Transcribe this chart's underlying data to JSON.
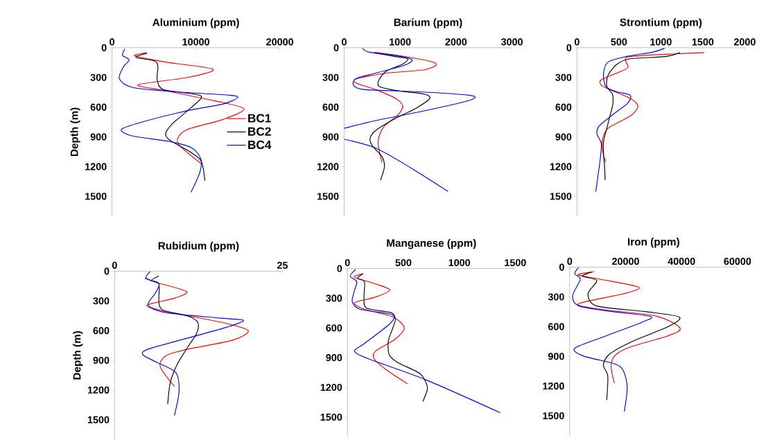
{
  "chart_data": [
    {
      "type": "line",
      "title": "Aluminium (ppm)",
      "ylabel": "Depth (m)",
      "xlim": [
        0,
        20000
      ],
      "xticks": [
        0,
        10000,
        20000
      ],
      "ylim": [
        1700,
        0
      ],
      "yticks": [
        0,
        300,
        600,
        900,
        1200,
        1500
      ],
      "legend": "right",
      "series": [
        {
          "name": "BC1",
          "color": "#ff0000",
          "x": [
            4155,
            2709,
            6390,
            12045,
            9020,
            3100,
            6390,
            12180,
            15730,
            13230,
            9020,
            7840,
            8100,
            10600
          ],
          "values": [
            51,
            82,
            145,
            218,
            300,
            374,
            434,
            535,
            617,
            724,
            824,
            913,
            991,
            1169
          ]
        },
        {
          "name": "BC2",
          "color": "#000000",
          "x": [
            4155,
            2840,
            5075,
            5470,
            5390,
            6130,
            9810,
            10650,
            9020,
            7190,
            6390,
            6920,
            9020,
            10470,
            10860,
            11070
          ],
          "values": [
            56,
            96,
            134,
            189,
            323,
            423,
            468,
            506,
            635,
            768,
            869,
            935,
            1036,
            1125,
            1214,
            1343
          ]
        },
        {
          "name": "BC4",
          "color": "#0000ff",
          "x": [
            1525,
            1260,
            2050,
            1390,
            870,
            2450,
            7710,
            14020,
            14940,
            13230,
            9020,
            3760,
            1130,
            2450,
            6920,
            9550,
            10600,
            10470,
            9420
          ],
          "values": [
            11,
            78,
            122,
            189,
            312,
            401,
            445,
            479,
            506,
            568,
            635,
            746,
            824,
            891,
            947,
            1013,
            1125,
            1258,
            1459
          ]
        }
      ]
    },
    {
      "type": "line",
      "title": "Barium (ppm)",
      "xlim": [
        0,
        3000
      ],
      "xticks": [
        0,
        1000,
        2000,
        3000
      ],
      "ylim": [
        1700,
        0
      ],
      "yticks": [
        0,
        300,
        600,
        900,
        1200,
        1500
      ],
      "series": [
        {
          "color": "#ff0000",
          "x": [
            545,
            960,
            1510,
            1650,
            1430,
            760,
            230,
            210,
            565,
            920,
            1045,
            960,
            720,
            620,
            610,
            675
          ],
          "values": [
            45,
            78,
            134,
            171,
            223,
            256,
            312,
            356,
            423,
            512,
            590,
            679,
            791,
            902,
            991,
            1158
          ]
        },
        {
          "color": "#000000",
          "x": [
            585,
            920,
            1140,
            1040,
            760,
            625,
            625,
            960,
            1430,
            1530,
            1280,
            920,
            565,
            465,
            505,
            680,
            720,
            650
          ],
          "values": [
            56,
            89,
            111,
            167,
            234,
            323,
            390,
            434,
            468,
            512,
            612,
            713,
            835,
            913,
            991,
            1102,
            1203,
            1336
          ]
        },
        {
          "color": "#0000ff",
          "x": [
            330,
            450,
            960,
            1215,
            1075,
            565,
            210,
            170,
            370,
            1355,
            2225,
            2335,
            2145,
            1355,
            565,
            0,
            null,
            0,
            565,
            1195,
            1855
          ],
          "values": [
            4,
            45,
            82,
            122,
            178,
            256,
            312,
            379,
            423,
            445,
            479,
            506,
            546,
            646,
            735,
            813,
            null,
            924,
            1013,
            1214,
            1450
          ]
        }
      ]
    },
    {
      "type": "line",
      "title": "Strontium (ppm)",
      "xlim": [
        0,
        2000
      ],
      "xticks": [
        0,
        500,
        1000,
        1500,
        2000
      ],
      "ylim": [
        1700,
        0
      ],
      "yticks": [
        0,
        300,
        600,
        900,
        1200,
        1500
      ],
      "series": [
        {
          "color": "#ff0000",
          "x": [
            1518,
            1215,
            634,
            581,
            607,
            475,
            290,
            290,
            422,
            634,
            726,
            634,
            370,
            304,
            304,
            343
          ],
          "values": [
            49,
            60,
            89,
            134,
            200,
            256,
            323,
            379,
            434,
            512,
            590,
            690,
            813,
            924,
            1036,
            1158
          ]
        },
        {
          "color": "#000000",
          "x": [
            1228,
            1056,
            634,
            475,
            370,
            356,
            422,
            428,
            396,
            356,
            317,
            317,
            330,
            335
          ],
          "values": [
            49,
            89,
            111,
            167,
            278,
            390,
            468,
            568,
            679,
            813,
            947,
            1080,
            1214,
            1336
          ]
        },
        {
          "color": "#0000ff",
          "x": [
            1043,
            898,
            581,
            370,
            317,
            343,
            475,
            634,
            607,
            422,
            264,
            238,
            290,
            277,
            224
          ],
          "values": [
            7,
            45,
            89,
            145,
            256,
            390,
            445,
            479,
            557,
            679,
            791,
            869,
            969,
            1125,
            1454
          ]
        }
      ]
    },
    {
      "type": "line",
      "title": "Rubidium (ppm)",
      "ylabel": "Depth (m)",
      "xlim": [
        0,
        25
      ],
      "xticks": [
        0,
        25
      ],
      "ylim": [
        1700,
        0
      ],
      "yticks": [
        0,
        300,
        600,
        900,
        1200,
        1500
      ],
      "series": [
        {
          "color": "#ff0000",
          "x": [
            4.5,
            6.3,
            10.7,
            8.9,
            4.8,
            7.6,
            16.1,
            19.9,
            17.5,
            10.9,
            7.6,
            6.8,
            8.9
          ],
          "values": [
            72,
            116,
            206,
            273,
            344,
            407,
            519,
            601,
            698,
            787,
            854,
            966,
            1163
          ]
        },
        {
          "color": "#000000",
          "x": [
            6.6,
            5.5,
            6.6,
            6.6,
            7.3,
            10.9,
            12.4,
            12.2,
            10.9,
            9.3,
            8.3,
            7.9
          ],
          "values": [
            49,
            94,
            127,
            318,
            396,
            452,
            519,
            631,
            765,
            944,
            1122,
            1342
          ]
        },
        {
          "color": "#0000ff",
          "x": [
            5.3,
            4.7,
            6.6,
            6.0,
            5.0,
            7.6,
            15.8,
            19.2,
            16.8,
            10.9,
            5.0,
            4.2,
            6.3,
            9.1,
            9.6,
            8.9
          ],
          "values": [
            4,
            72,
            127,
            228,
            340,
            418,
            474,
            496,
            563,
            675,
            787,
            843,
            921,
            1022,
            1212,
            1458
          ]
        }
      ]
    },
    {
      "type": "line",
      "title": "Manganese (ppm)",
      "xlim": [
        0,
        1500
      ],
      "xticks": [
        0,
        500,
        1000,
        1500
      ],
      "ylim": [
        1700,
        0
      ],
      "yticks": [
        0,
        300,
        600,
        900,
        1200,
        1500
      ],
      "series": [
        {
          "color": "#ff0000",
          "x": [
            132,
            63,
            250,
            378,
            250,
            63,
            152,
            408,
            507,
            428,
            250,
            240,
            349,
            536
          ],
          "values": [
            55,
            88,
            155,
            217,
            289,
            345,
            411,
            490,
            601,
            712,
            835,
            913,
            1025,
            1163
          ]
        },
        {
          "color": "#000000",
          "x": [
            142,
            89,
            152,
            148,
            171,
            388,
            428,
            398,
            365,
            373,
            447,
            645,
            704,
            714,
            674
          ],
          "values": [
            50,
            99,
            133,
            289,
            401,
            445,
            512,
            623,
            735,
            869,
            947,
            1058,
            1158,
            1225,
            1341
          ]
        },
        {
          "color": "#0000ff",
          "x": [
            73,
            24,
            83,
            63,
            43,
            112,
            369,
            418,
            369,
            152,
            63,
            191,
            704,
            1364
          ],
          "values": [
            10,
            77,
            133,
            222,
            334,
            411,
            456,
            490,
            568,
            757,
            835,
            913,
            1125,
            1455
          ]
        }
      ]
    },
    {
      "type": "line",
      "title": "Iron (ppm)",
      "xlim": [
        0,
        60000
      ],
      "xticks": [
        0,
        20000,
        40000,
        60000
      ],
      "ylim": [
        1700,
        0
      ],
      "yticks": [
        0,
        300,
        600,
        900,
        1200,
        1500
      ],
      "series": [
        {
          "color": "#ff0000",
          "x": [
            8750,
            2990,
            11270,
            24660,
            19150,
            2990,
            11270,
            30970,
            39480,
            34910,
            21510,
            15990,
            14810,
            16000
          ],
          "values": [
            45,
            78,
            123,
            202,
            269,
            370,
            426,
            493,
            617,
            695,
            807,
            897,
            1009,
            1170
          ]
        },
        {
          "color": "#000000",
          "x": [
            7960,
            4570,
            9690,
            6540,
            9690,
            27030,
            39240,
            34910,
            23090,
            14420,
            12060,
            13630,
            13240
          ],
          "values": [
            49,
            90,
            135,
            269,
            392,
            448,
            504,
            605,
            740,
            874,
            986,
            1099,
            1341
          ]
        },
        {
          "color": "#0000ff",
          "x": [
            3150,
            1810,
            3780,
            1020,
            3390,
            15210,
            29000,
            25450,
            12840,
            1810,
            4960,
            16000,
            19150,
            20570,
            19540
          ],
          "values": [
            4,
            67,
            123,
            291,
            392,
            448,
            498,
            560,
            695,
            818,
            897,
            975,
            1043,
            1211,
            1457
          ]
        }
      ]
    }
  ]
}
